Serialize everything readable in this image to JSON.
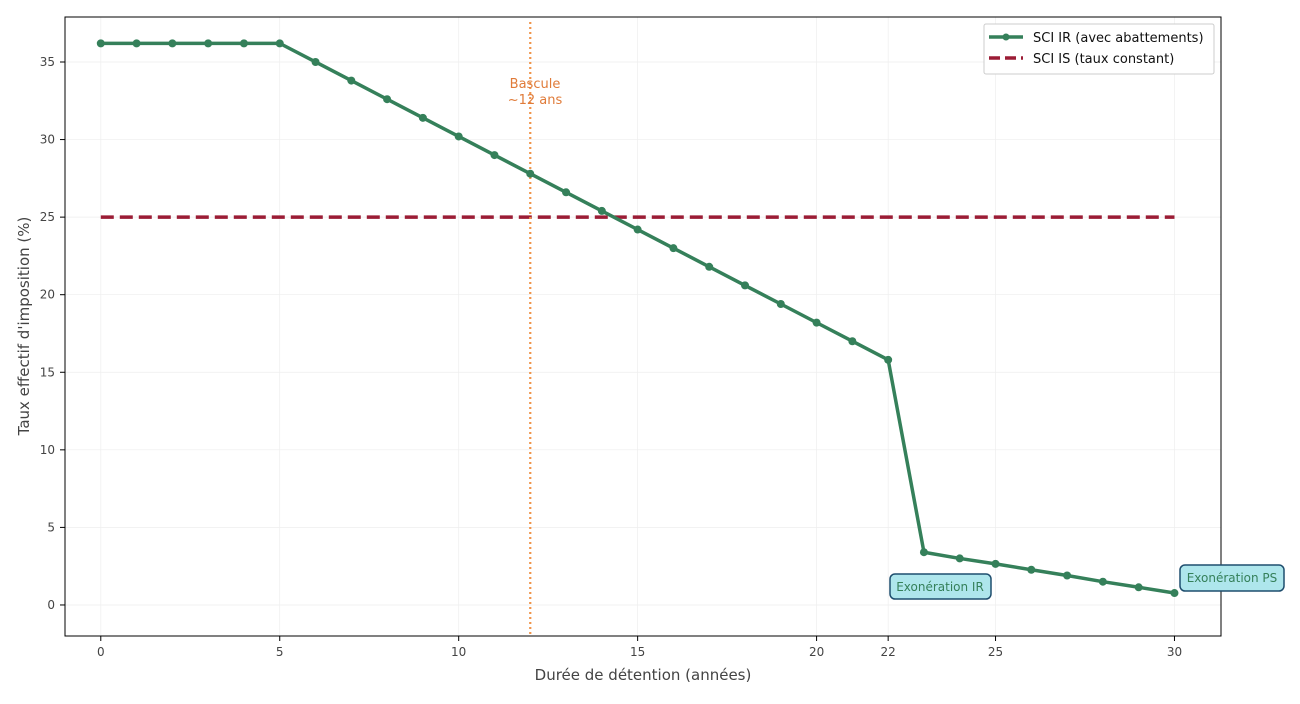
{
  "chart_data": {
    "type": "line",
    "title": "",
    "xlabel": "Durée de détention (années)",
    "ylabel": "Taux effectif d'imposition (%)",
    "xlim": [
      -1,
      31.3
    ],
    "ylim": [
      -2.0,
      37.9
    ],
    "xticks": [
      0,
      5,
      10,
      15,
      20,
      22,
      25,
      30
    ],
    "yticks": [
      0,
      5,
      10,
      15,
      20,
      25,
      30,
      35
    ],
    "grid": true,
    "legend_position": "top-right",
    "series": [
      {
        "name": "SCI IR (avec abattements)",
        "color": "#35805a",
        "style": "solid-markers",
        "x": [
          0,
          1,
          2,
          3,
          4,
          5,
          6,
          7,
          8,
          9,
          10,
          11,
          12,
          13,
          14,
          15,
          16,
          17,
          18,
          19,
          20,
          21,
          22,
          23,
          24,
          25,
          26,
          27,
          28,
          29,
          30
        ],
        "values": [
          36.2,
          36.2,
          36.2,
          36.2,
          36.2,
          36.2,
          35.0,
          33.8,
          32.6,
          31.4,
          30.2,
          29.0,
          27.8,
          26.6,
          25.4,
          24.2,
          23.0,
          21.8,
          20.6,
          19.4,
          18.2,
          17.0,
          15.8,
          3.4,
          3.0,
          2.65,
          2.27,
          1.9,
          1.5,
          1.14,
          0.77
        ]
      },
      {
        "name": "SCI IS (taux constant)",
        "color": "#9b1c35",
        "style": "dashed",
        "x": [
          0,
          30
        ],
        "values": [
          25,
          25
        ]
      }
    ],
    "vline": {
      "x": 12,
      "color": "#f0944a",
      "label_line1": "Bascule",
      "label_line2": "~12 ans"
    },
    "annotations": [
      {
        "text": "Exonération IR",
        "x": 22,
        "y": 1.2
      },
      {
        "text": "Exonération PS",
        "x": 30,
        "y": 1.8
      }
    ]
  }
}
